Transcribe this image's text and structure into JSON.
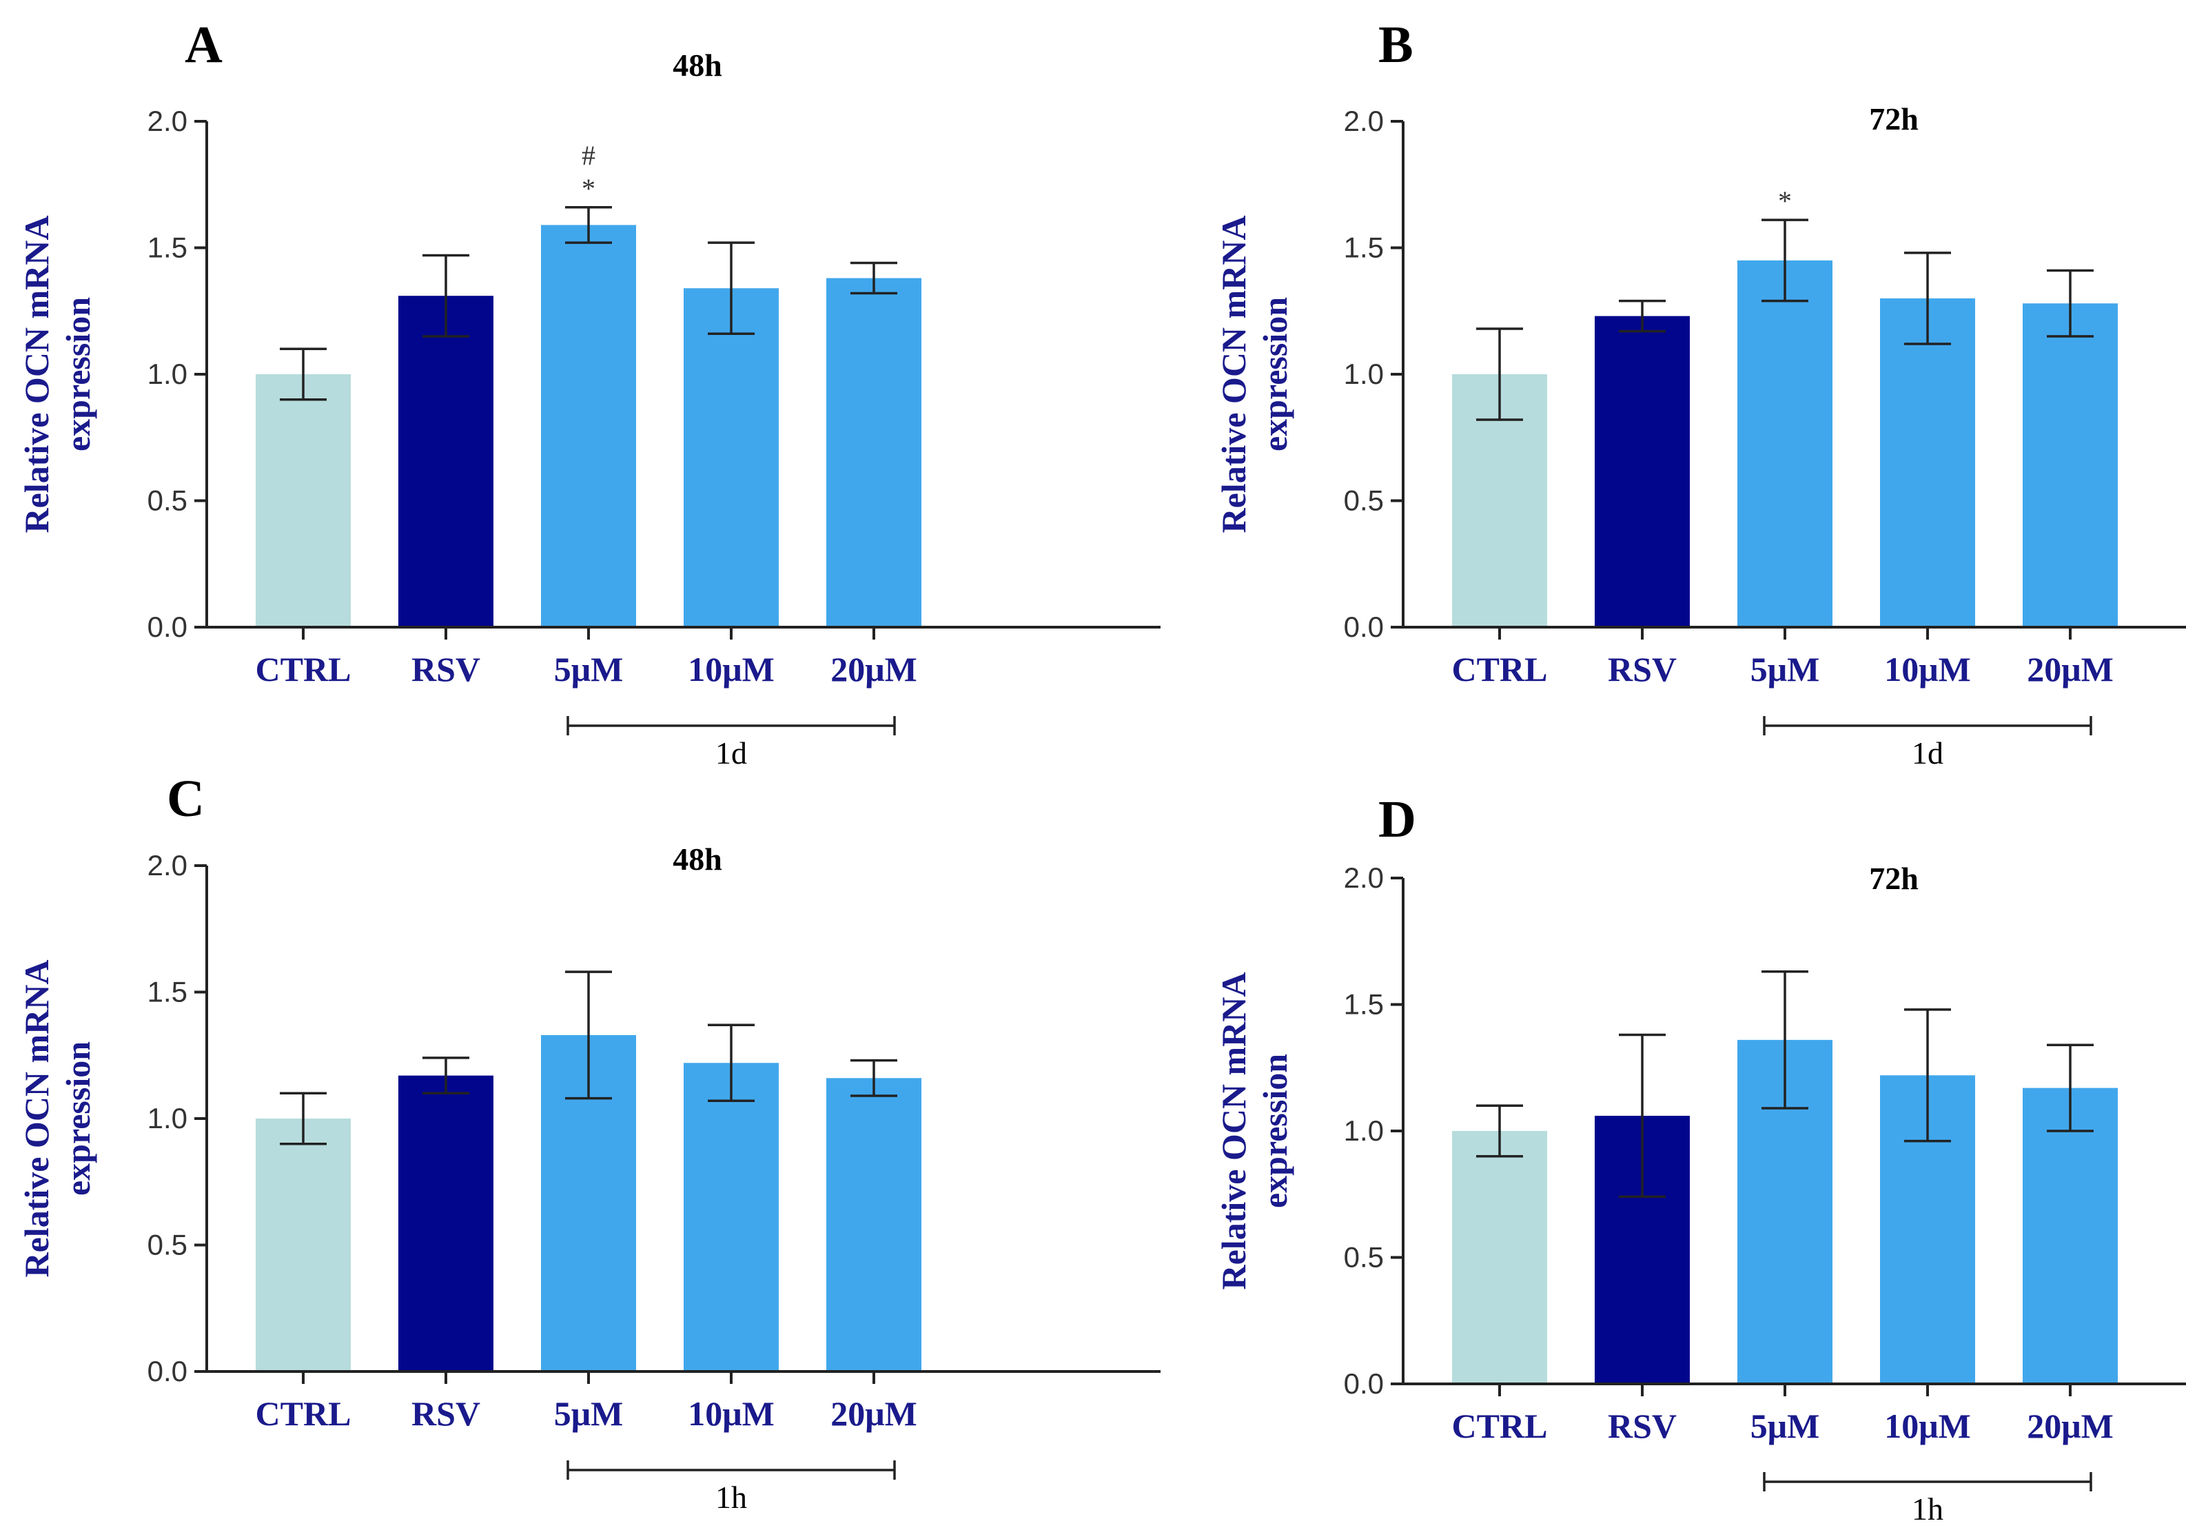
{
  "colors": {
    "ctrl": "#b7dcdd",
    "rsv": "#02068c",
    "treat": "#41a7ec",
    "axis": "#222222",
    "label_blue": "#1a1a8c"
  },
  "chart_data": [
    {
      "type": "bar",
      "panel": "A",
      "title": "48h",
      "ylabel_line1": "Relative OCN mRNA",
      "ylabel_line2": "expression",
      "categories": [
        "CTRL",
        "RSV",
        "5μM",
        "10μM",
        "20μM"
      ],
      "values": [
        1.0,
        1.31,
        1.59,
        1.34,
        1.38
      ],
      "errors": [
        0.1,
        0.16,
        0.07,
        0.18,
        0.06
      ],
      "significance": [
        "",
        "",
        "#\n*",
        "",
        ""
      ],
      "ylim": [
        0,
        2.0
      ],
      "yticks": [
        "0.0",
        "0.5",
        "1.0",
        "1.5",
        "2.0"
      ],
      "group_label": "1d"
    },
    {
      "type": "bar",
      "panel": "B",
      "title": "72h",
      "ylabel_line1": "Relative OCN mRNA",
      "ylabel_line2": "expression",
      "categories": [
        "CTRL",
        "RSV",
        "5μM",
        "10μM",
        "20μM"
      ],
      "values": [
        1.0,
        1.23,
        1.45,
        1.3,
        1.28
      ],
      "errors": [
        0.18,
        0.06,
        0.16,
        0.18,
        0.13
      ],
      "significance": [
        "",
        "",
        "*",
        "",
        ""
      ],
      "ylim": [
        0,
        2.0
      ],
      "yticks": [
        "0.0",
        "0.5",
        "1.0",
        "1.5",
        "2.0"
      ],
      "group_label": "1d"
    },
    {
      "type": "bar",
      "panel": "C",
      "title": "48h",
      "ylabel_line1": "Relative OCN mRNA",
      "ylabel_line2": "expression",
      "categories": [
        "CTRL",
        "RSV",
        "5μM",
        "10μM",
        "20μM"
      ],
      "values": [
        1.0,
        1.17,
        1.33,
        1.22,
        1.16
      ],
      "errors": [
        0.1,
        0.07,
        0.25,
        0.15,
        0.07
      ],
      "significance": [
        "",
        "",
        "",
        "",
        ""
      ],
      "ylim": [
        0,
        2.0
      ],
      "yticks": [
        "0.0",
        "0.5",
        "1.0",
        "1.5",
        "2.0"
      ],
      "group_label": "1h"
    },
    {
      "type": "bar",
      "panel": "D",
      "title": "72h",
      "ylabel_line1": "Relative OCN mRNA",
      "ylabel_line2": "expression",
      "categories": [
        "CTRL",
        "RSV",
        "5μM",
        "10μM",
        "20μM"
      ],
      "values": [
        1.0,
        1.06,
        1.36,
        1.22,
        1.17
      ],
      "errors": [
        0.1,
        0.32,
        0.27,
        0.26,
        0.17
      ],
      "significance": [
        "",
        "",
        "",
        "",
        ""
      ],
      "ylim": [
        0,
        2.0
      ],
      "yticks": [
        "0.0",
        "0.5",
        "1.0",
        "1.5",
        "2.0"
      ],
      "group_label": "1h"
    }
  ]
}
